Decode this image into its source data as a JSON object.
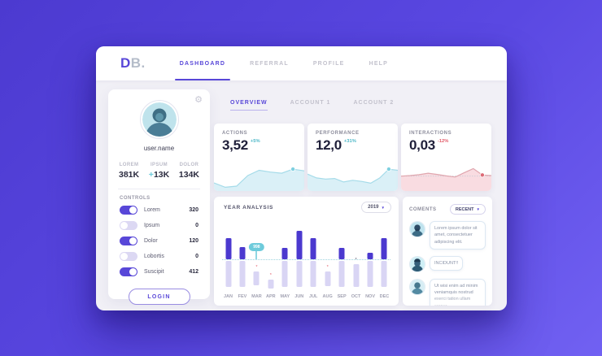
{
  "nav": {
    "logo_bold": "D",
    "logo_light": "B.",
    "items": [
      {
        "label": "DASHBOARD",
        "active": true
      },
      {
        "label": "REFERRAL",
        "active": false
      },
      {
        "label": "PROFILE",
        "active": false
      },
      {
        "label": "HELP",
        "active": false
      }
    ]
  },
  "sidebar": {
    "username": "user.name",
    "stats": [
      {
        "label": "LOREM",
        "prefix": "",
        "value": "381K"
      },
      {
        "label": "IPSUM",
        "prefix": "+",
        "value": "13K"
      },
      {
        "label": "DOLOR",
        "prefix": "",
        "value": "134K"
      }
    ],
    "controls_title": "CONTROLS",
    "controls": [
      {
        "label": "Lorem",
        "value": "320",
        "on": true
      },
      {
        "label": "Ipsum",
        "value": "0",
        "on": false
      },
      {
        "label": "Dolor",
        "value": "120",
        "on": true
      },
      {
        "label": "Lobortis",
        "value": "0",
        "on": false
      },
      {
        "label": "Suscipit",
        "value": "412",
        "on": true
      }
    ],
    "login_label": "LOGIN"
  },
  "tabs": [
    {
      "label": "OVERVIEW",
      "active": true
    },
    {
      "label": "ACCOUNT 1",
      "active": false
    },
    {
      "label": "ACCOUNT 2",
      "active": false
    }
  ],
  "colors": {
    "accent_purple": "#5847d8",
    "bar_purple": "#4b39cf",
    "bar_light": "#d9d5f4",
    "teal": "#6ecbdb",
    "delta_up": "#4db8c8",
    "delta_down": "#e25c6a",
    "spark_blue_fill": "#daf0f7",
    "spark_blue_line": "#a5dbe9",
    "spark_red_fill": "#f9dce1",
    "spark_red_line": "#e0a6ae"
  },
  "chart_data": [
    {
      "type": "area",
      "title": "ACTIONS",
      "value": "3,52",
      "delta": "+5%",
      "trend": "up",
      "theme": "blue",
      "y_norm": [
        25,
        10,
        14,
        50,
        68,
        62,
        58,
        72,
        66
      ],
      "dot_index": 7,
      "dotted_baseline": false
    },
    {
      "type": "area",
      "title": "PERFORMANCE",
      "value": "12,0",
      "delta": "+31%",
      "trend": "up",
      "theme": "blue",
      "y_norm": [
        55,
        42,
        38,
        40,
        28,
        34,
        30,
        24,
        42,
        72,
        68
      ],
      "dot_index": 9,
      "dotted_baseline": false
    },
    {
      "type": "area",
      "title": "INTERACTIONS",
      "value": "0,03",
      "delta": "-12%",
      "trend": "down",
      "theme": "red",
      "y_norm": [
        48,
        50,
        53,
        58,
        54,
        49,
        45,
        60,
        74,
        52,
        50
      ],
      "dot_index": 9,
      "dotted_baseline": true
    },
    {
      "type": "bar",
      "title": "YEAR ANALYSIS",
      "year_filter": "2019",
      "categories": [
        "JAN",
        "FEV",
        "MAR",
        "APR",
        "MAY",
        "JUN",
        "JUL",
        "AUG",
        "SEP",
        "OCT",
        "NOV",
        "DEC"
      ],
      "series": [
        {
          "name": "above-baseline",
          "values": [
            26,
            15,
            0,
            0,
            14,
            35,
            26,
            0,
            14,
            0,
            8,
            26
          ]
        },
        {
          "name": "below-baseline",
          "values": [
            32,
            32,
            17,
            11,
            32,
            32,
            32,
            18,
            32,
            28,
            32,
            32
          ]
        }
      ],
      "below_offsets": [
        0,
        0,
        13,
        23,
        0,
        0,
        0,
        13,
        0,
        4,
        0,
        0
      ],
      "marks": [
        null,
        null,
        "red",
        "red",
        null,
        null,
        null,
        "red",
        null,
        "dark",
        null,
        null
      ],
      "tooltip": {
        "category": "MAR",
        "label": "998"
      },
      "grid": "dotted-baseline",
      "legend": "none"
    }
  ],
  "comments": {
    "title": "COMENTS",
    "filter_label": "RECENT",
    "items": [
      {
        "text": "Lorem ipsum dolor sit amet, consectetuer adipiscing elit."
      },
      {
        "text": "INCIDUNT!!"
      },
      {
        "text": "Ut wisi enim ad minim veniamquis nostrud exerci tation ullam corper."
      }
    ]
  }
}
